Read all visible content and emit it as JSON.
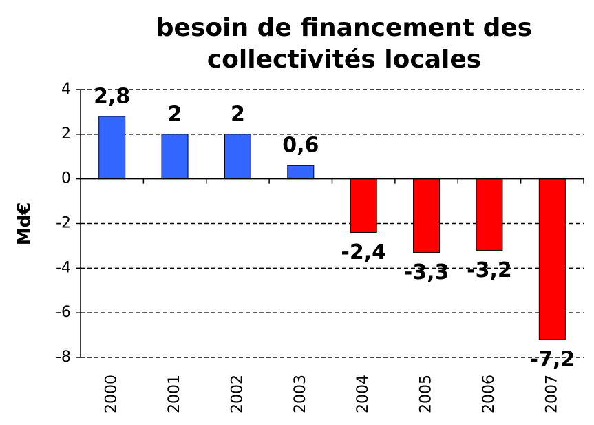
{
  "chart_data": {
    "type": "bar",
    "title": [
      "besoin de financement des",
      "collectivités locales"
    ],
    "ylabel": "Md€",
    "categories": [
      "2000",
      "2001",
      "2002",
      "2003",
      "2004",
      "2005",
      "2006",
      "2007"
    ],
    "values": [
      2.8,
      2,
      2,
      0.6,
      -2.4,
      -3.3,
      -3.2,
      -7.2
    ],
    "value_labels": [
      "2,8",
      "2",
      "2",
      "0,6",
      "-2,4",
      "-3,3",
      "-3,2",
      "-7,2"
    ],
    "colors": [
      "#3366ff",
      "#3366ff",
      "#3366ff",
      "#3366ff",
      "#ff0000",
      "#ff0000",
      "#ff0000",
      "#ff0000"
    ],
    "ylim": [
      -8,
      4
    ],
    "yticks": [
      4,
      2,
      0,
      -2,
      -4,
      -6,
      -8
    ],
    "grid": true
  }
}
